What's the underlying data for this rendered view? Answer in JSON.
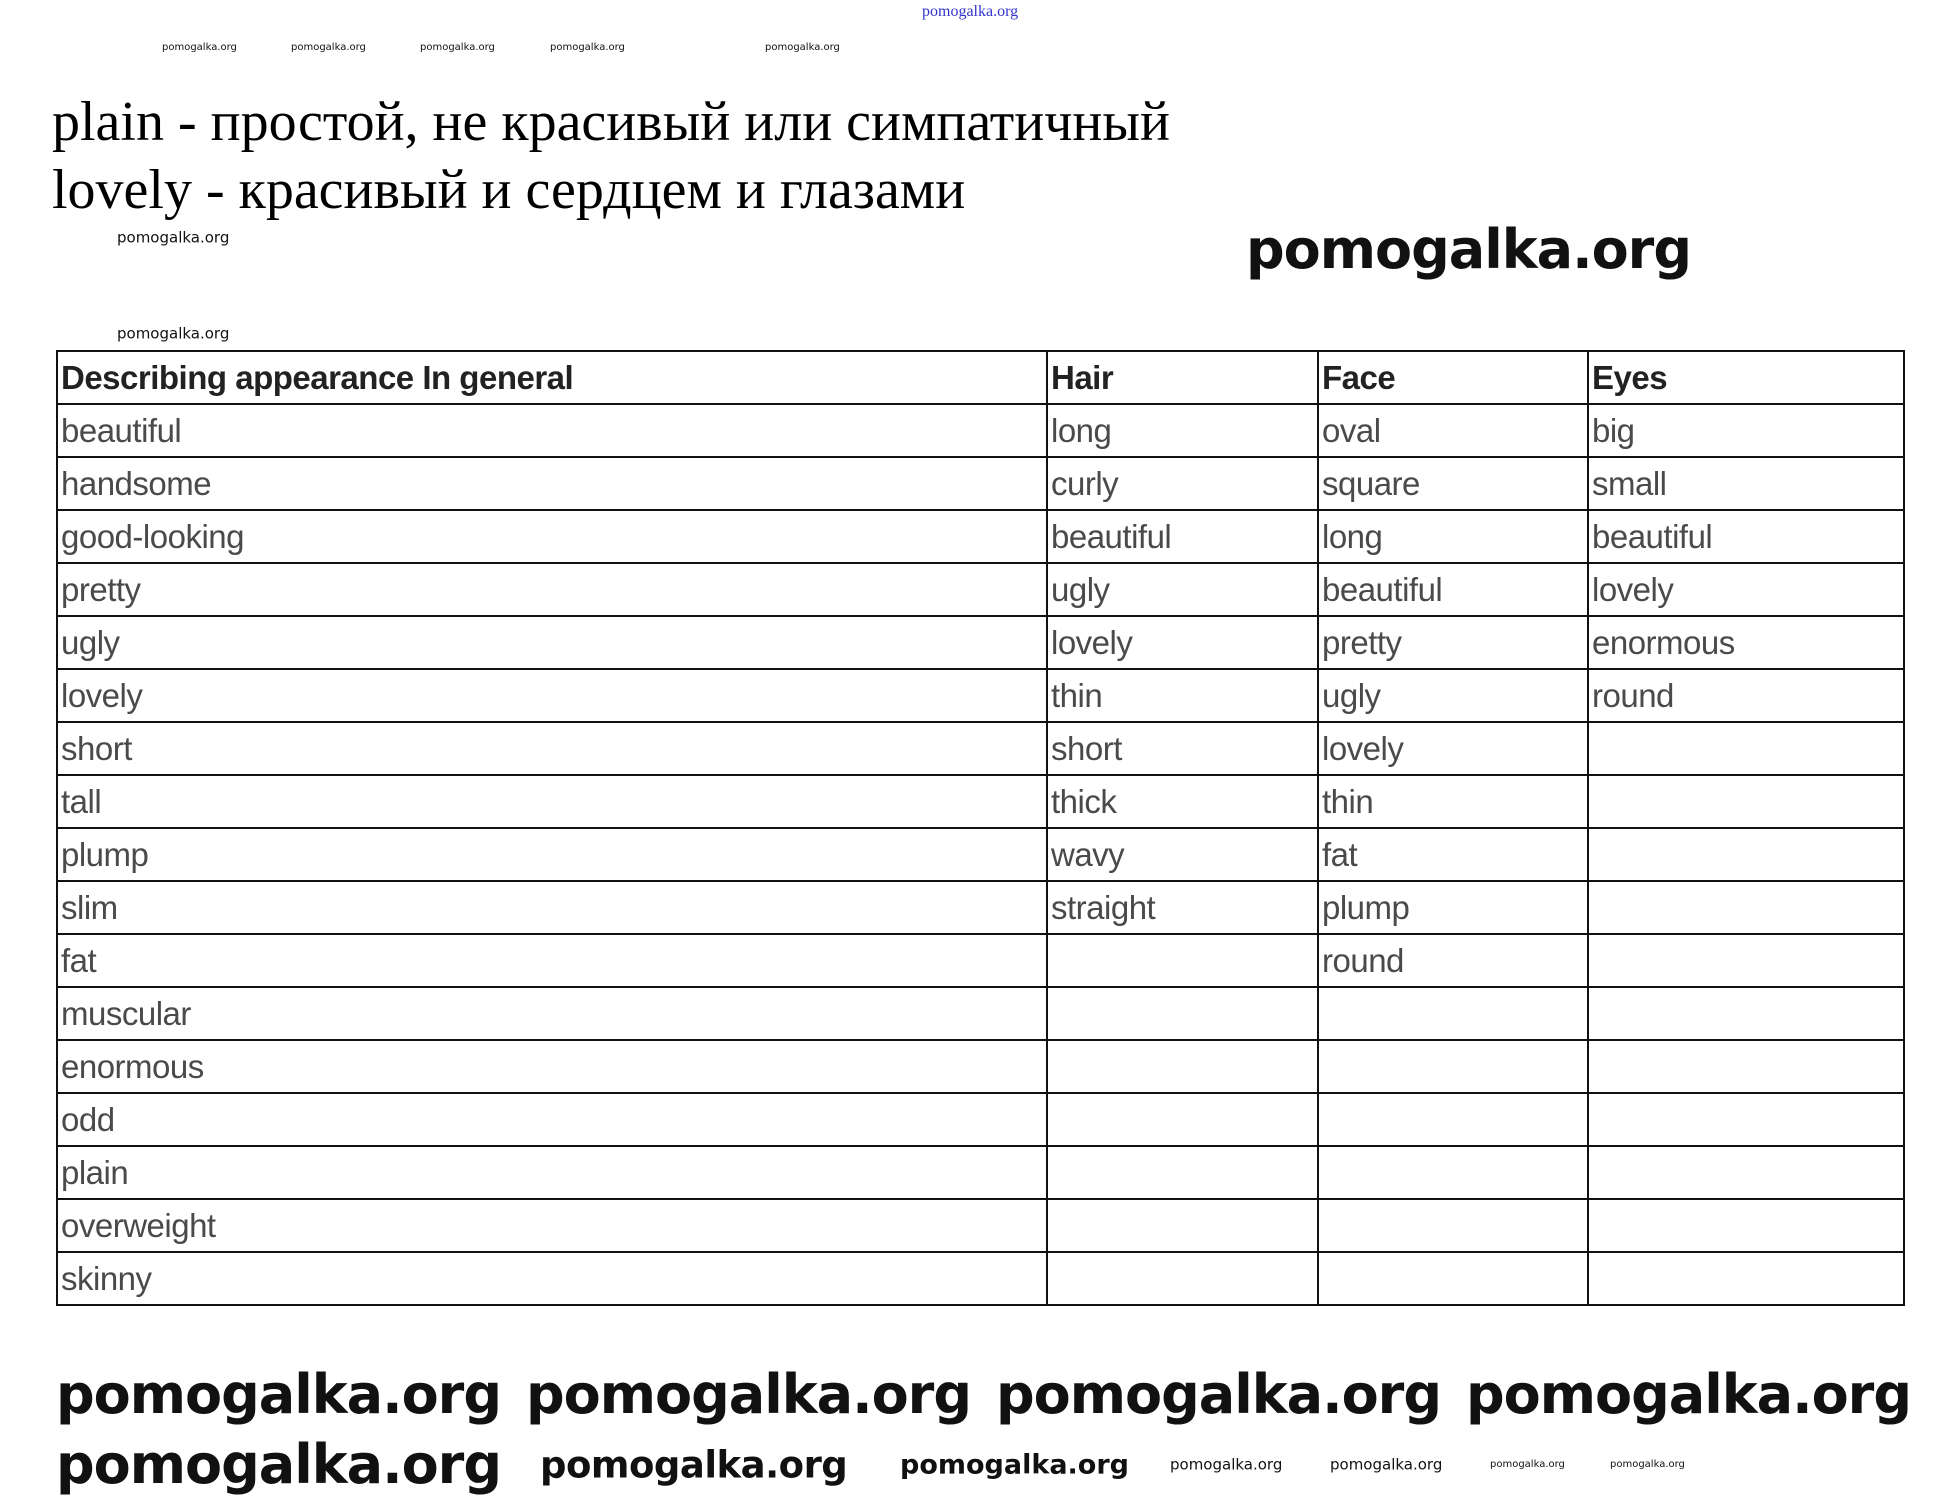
{
  "watermark": "pomogalka.org",
  "notes": [
    "plain - простой, не красивый или симпатичный",
    "lovely - красивый и сердцем и глазами"
  ],
  "table": {
    "headers": [
      "Describing appearance In general",
      "Hair",
      "Face",
      "Eyes"
    ],
    "rows": [
      [
        "beautiful",
        "long",
        "oval",
        "big"
      ],
      [
        "handsome",
        "curly",
        "square",
        "small"
      ],
      [
        "good-looking",
        "beautiful",
        "long",
        "beautiful"
      ],
      [
        "pretty",
        "ugly",
        "beautiful",
        "lovely"
      ],
      [
        "ugly",
        "lovely",
        "pretty",
        "enormous"
      ],
      [
        "lovely",
        "thin",
        "ugly",
        "round"
      ],
      [
        "short",
        "short",
        "lovely",
        ""
      ],
      [
        "tall",
        "thick",
        "thin",
        ""
      ],
      [
        "plump",
        "wavy",
        "fat",
        ""
      ],
      [
        "slim",
        "straight",
        "plump",
        ""
      ],
      [
        "fat",
        "",
        "round",
        ""
      ],
      [
        "muscular",
        "",
        "",
        ""
      ],
      [
        "enormous",
        "",
        "",
        ""
      ],
      [
        "odd",
        "",
        "",
        ""
      ],
      [
        "plain",
        "",
        "",
        ""
      ],
      [
        "overweight",
        "",
        "",
        ""
      ],
      [
        "skinny",
        "",
        "",
        ""
      ]
    ]
  }
}
